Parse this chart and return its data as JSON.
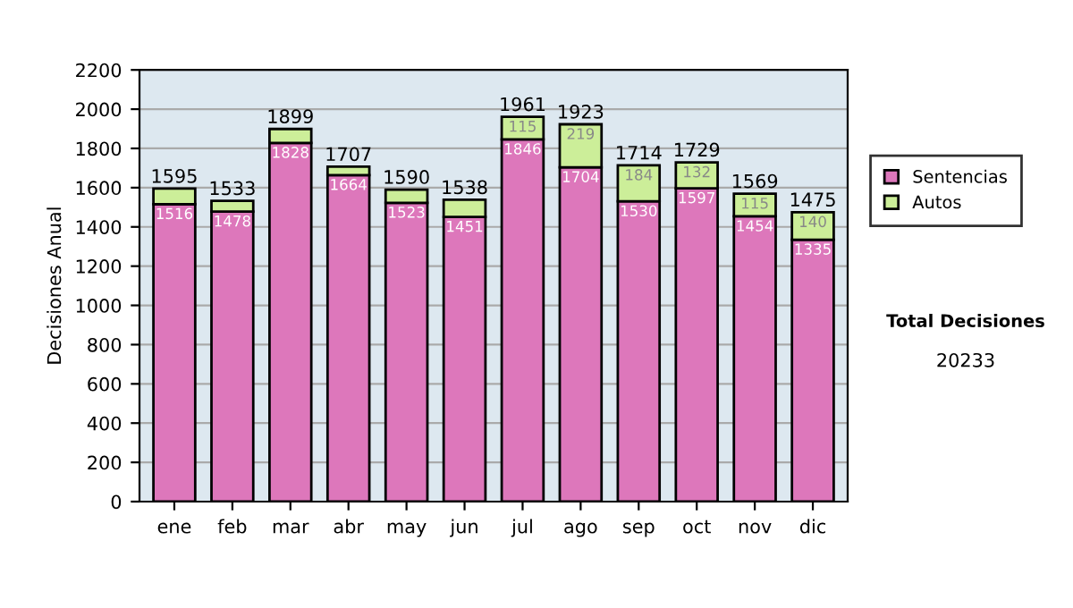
{
  "chart_data": {
    "type": "bar",
    "ylabel": "Decisiones Anual",
    "categories": [
      "ene",
      "feb",
      "mar",
      "abr",
      "may",
      "jun",
      "jul",
      "ago",
      "sep",
      "oct",
      "nov",
      "dic"
    ],
    "stacked": true,
    "series": [
      {
        "name": "Sentencias",
        "color": "#dd77bb",
        "values": [
          1516,
          1478,
          1828,
          1664,
          1523,
          1451,
          1846,
          1704,
          1530,
          1597,
          1454,
          1335
        ],
        "value_labels": [
          "1516",
          "1478",
          "1828",
          "1664",
          "1523",
          "1451",
          "1846",
          "1704",
          "1530",
          "1597",
          "1454",
          "1335"
        ]
      },
      {
        "name": "Autos",
        "color": "#ccee99",
        "values": [
          79,
          55,
          71,
          43,
          67,
          87,
          115,
          219,
          184,
          132,
          115,
          140
        ],
        "value_labels": [
          null,
          null,
          null,
          null,
          null,
          null,
          "115",
          "219",
          "184",
          "132",
          "115",
          "140"
        ]
      }
    ],
    "totals": [
      "1595",
      "1533",
      "1899",
      "1707",
      "1590",
      "1538",
      "1961",
      "1923",
      "1714",
      "1729",
      "1569",
      "1475"
    ],
    "ylim": [
      0,
      2200
    ],
    "yticks": [
      0,
      200,
      400,
      600,
      800,
      1000,
      1200,
      1400,
      1600,
      1800,
      2000,
      2200
    ],
    "grid": "y",
    "legend": "right",
    "annotations": [
      "Total Decisiones",
      "20233"
    ]
  }
}
